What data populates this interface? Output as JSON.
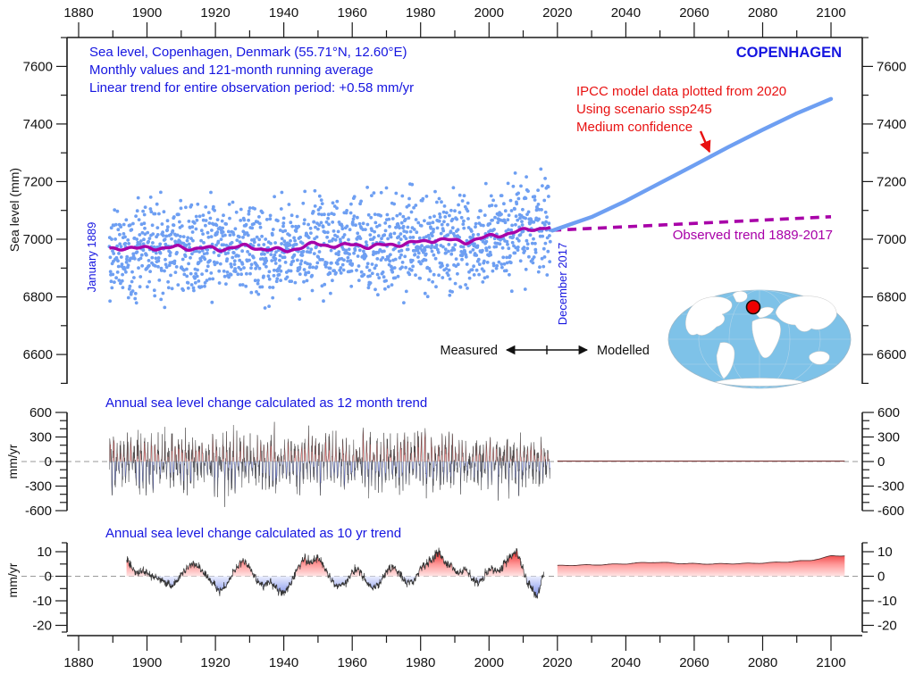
{
  "colors": {
    "text_blue": "#1515E0",
    "text_red": "#E81111",
    "purple": "#A800A8",
    "light_blue": "#6E9FF2",
    "axis": "#1A1A1A",
    "ocean": "#7EC2E8",
    "marker_red": "#EE0000"
  },
  "top_panel": {
    "station_label": "COPENHAGEN",
    "title_lines": [
      "Sea level, Copenhagen, Denmark (55.71°N, 12.60°E)",
      "Monthly values and 121-month running average",
      "Linear trend for entire observation period: +0.58 mm/yr"
    ],
    "ipcc_lines": [
      "IPCC model data plotted from 2020",
      "Using scenario ssp245",
      "Medium confidence"
    ],
    "observed_trend_label": "Observed trend 1889-2017",
    "start_label": "January 1889",
    "end_label": "December 2017",
    "measured_label": "Measured",
    "modelled_label": "Modelled",
    "ylabel": "Sea level (mm)"
  },
  "mid_panel": {
    "title": "Annual sea level change calculated as 12 month trend",
    "ylabel": "mm/yr"
  },
  "bottom_panel": {
    "title": "Annual sea level change calculated as 10 yr trend",
    "ylabel": "mm/yr"
  },
  "chart_data": [
    {
      "id": "sea-level-monthly",
      "type": "scatter",
      "title": "Sea level, Copenhagen, Denmark (55.71°N, 12.60°E)",
      "ylabel": "Sea level (mm)",
      "x_axis": {
        "min": 1880,
        "max": 2100,
        "major": 20,
        "minor": 10
      },
      "y_axis": {
        "major_ticks": [
          6600,
          6800,
          7000,
          7200,
          7400,
          7600
        ],
        "minor_step": 100,
        "minor_range": [
          6500,
          7700
        ]
      },
      "observed_period": {
        "start": "January 1889",
        "end": "December 2017"
      },
      "linear_trend_mm_per_yr": 0.58,
      "scatter_sim": {
        "start_year": 1889,
        "end_year": 2017.95,
        "samples_per_year": 12,
        "std_mm": 82,
        "clip_mm": 205,
        "seed": 20170
      },
      "running_average_points": [
        [
          1889,
          6966
        ],
        [
          1893,
          6971
        ],
        [
          1897,
          6967
        ],
        [
          1901,
          6972
        ],
        [
          1905,
          6968
        ],
        [
          1909,
          6973
        ],
        [
          1913,
          6968
        ],
        [
          1917,
          6970
        ],
        [
          1921,
          6964
        ],
        [
          1925,
          6973
        ],
        [
          1929,
          6975
        ],
        [
          1933,
          6968
        ],
        [
          1937,
          6964
        ],
        [
          1941,
          6960
        ],
        [
          1945,
          6973
        ],
        [
          1949,
          6984
        ],
        [
          1953,
          6979
        ],
        [
          1957,
          6977
        ],
        [
          1961,
          6982
        ],
        [
          1965,
          6974
        ],
        [
          1969,
          6979
        ],
        [
          1973,
          6982
        ],
        [
          1977,
          6987
        ],
        [
          1981,
          6992
        ],
        [
          1985,
          7000
        ],
        [
          1989,
          6996
        ],
        [
          1993,
          6991
        ],
        [
          1997,
          7001
        ],
        [
          2001,
          7012
        ],
        [
          2005,
          7018
        ],
        [
          2009,
          7028
        ],
        [
          2013,
          7037
        ],
        [
          2017,
          7040
        ]
      ],
      "ipcc_projection_points": [
        [
          2018.5,
          7030
        ],
        [
          2030,
          7077
        ],
        [
          2040,
          7133
        ],
        [
          2050,
          7195
        ],
        [
          2060,
          7257
        ],
        [
          2070,
          7320
        ],
        [
          2080,
          7380
        ],
        [
          2090,
          7437
        ],
        [
          2100,
          7487
        ]
      ],
      "observed_trend_extension_points": [
        [
          2018.5,
          7031
        ],
        [
          2100,
          7078
        ]
      ]
    },
    {
      "id": "annual-change-12-month-trend",
      "type": "area",
      "title": "Annual sea level change calculated as 12 month trend",
      "ylabel": "mm/yr",
      "y_axis": {
        "major_ticks": [
          600,
          300,
          0,
          -300,
          -600
        ],
        "minor_step": 100
      },
      "measured_sim": {
        "start_year": 1889,
        "end_year": 2017.95,
        "seed": 777,
        "seasonal_amp_range": [
          110,
          290
        ],
        "noise_std": 85,
        "clamp": 555
      },
      "model_extension": {
        "start_year": 2020,
        "end_year": 2104,
        "value": 5
      }
    },
    {
      "id": "annual-change-10-yr-trend",
      "type": "area",
      "title": "Annual sea level change calculated as 10 yr trend",
      "ylabel": "mm/yr",
      "y_axis": {
        "major_ticks": [
          10,
          0,
          -10,
          -20
        ],
        "minor_ticks": [
          5,
          -5,
          -15
        ]
      },
      "measured_points": [
        [
          1894,
          6.5
        ],
        [
          1896,
          3
        ],
        [
          1897,
          1.5
        ],
        [
          1899,
          2
        ],
        [
          1901,
          0.5
        ],
        [
          1903,
          -1
        ],
        [
          1905,
          -2
        ],
        [
          1907,
          -4
        ],
        [
          1908,
          -3
        ],
        [
          1910,
          0.5
        ],
        [
          1912,
          4
        ],
        [
          1913,
          5
        ],
        [
          1915,
          4
        ],
        [
          1916,
          2
        ],
        [
          1918,
          -1
        ],
        [
          1920,
          -4
        ],
        [
          1921,
          -6
        ],
        [
          1923,
          -4
        ],
        [
          1925,
          1
        ],
        [
          1927,
          5
        ],
        [
          1928,
          6
        ],
        [
          1930,
          4
        ],
        [
          1932,
          -2
        ],
        [
          1934,
          -4
        ],
        [
          1936,
          -2
        ],
        [
          1938,
          -5
        ],
        [
          1940,
          -7
        ],
        [
          1942,
          -3
        ],
        [
          1944,
          3
        ],
        [
          1946,
          7
        ],
        [
          1948,
          6
        ],
        [
          1950,
          8
        ],
        [
          1952,
          3
        ],
        [
          1954,
          -2
        ],
        [
          1956,
          -4
        ],
        [
          1958,
          -3
        ],
        [
          1960,
          2
        ],
        [
          1962,
          3
        ],
        [
          1964,
          -2
        ],
        [
          1966,
          -5
        ],
        [
          1968,
          -3
        ],
        [
          1970,
          2
        ],
        [
          1972,
          4
        ],
        [
          1974,
          1
        ],
        [
          1976,
          -3
        ],
        [
          1978,
          -2
        ],
        [
          1980,
          3
        ],
        [
          1982,
          5
        ],
        [
          1984,
          8
        ],
        [
          1985,
          10
        ],
        [
          1987,
          6
        ],
        [
          1989,
          4
        ],
        [
          1991,
          1
        ],
        [
          1993,
          3
        ],
        [
          1995,
          -1
        ],
        [
          1997,
          -3
        ],
        [
          1999,
          1
        ],
        [
          2001,
          3
        ],
        [
          2003,
          2
        ],
        [
          2005,
          6
        ],
        [
          2007,
          9
        ],
        [
          2008,
          10
        ],
        [
          2010,
          3
        ],
        [
          2011,
          -2
        ],
        [
          2013,
          -6
        ],
        [
          2014,
          -9
        ],
        [
          2015,
          -4
        ],
        [
          2016,
          2
        ]
      ],
      "measured_noise": {
        "seed": 424,
        "std": 0.8
      },
      "model_points": [
        [
          2020,
          4.3
        ],
        [
          2025,
          4.5
        ],
        [
          2030,
          4.6
        ],
        [
          2035,
          4.8
        ],
        [
          2040,
          5.1
        ],
        [
          2045,
          5.5
        ],
        [
          2048,
          5.7
        ],
        [
          2052,
          5.5
        ],
        [
          2056,
          5.2
        ],
        [
          2060,
          5.1
        ],
        [
          2065,
          5.0
        ],
        [
          2070,
          5.1
        ],
        [
          2075,
          5.2
        ],
        [
          2080,
          5.4
        ],
        [
          2085,
          5.7
        ],
        [
          2090,
          6.1
        ],
        [
          2094,
          6.5
        ],
        [
          2097,
          7.2
        ],
        [
          2100,
          8.3
        ],
        [
          2104,
          8.4
        ]
      ]
    }
  ]
}
